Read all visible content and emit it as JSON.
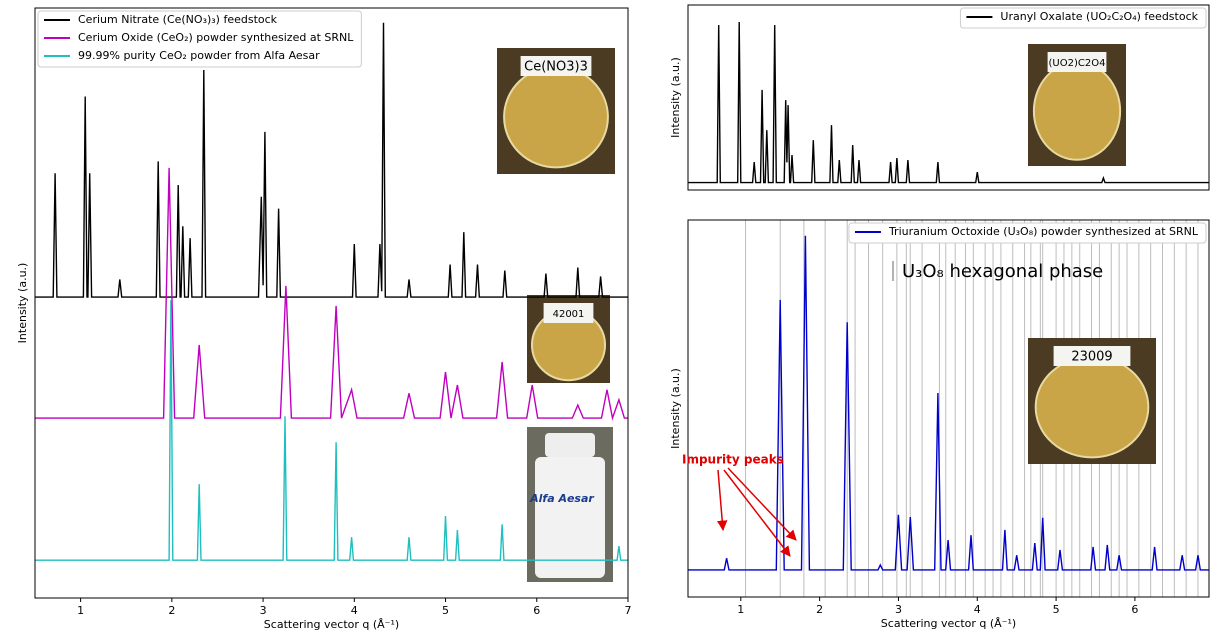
{
  "chart_data": [
    {
      "type": "line",
      "xlabel": "Scattering vector q (Å⁻¹)",
      "ylabel": "Intensity (a.u.)",
      "xlim": [
        0.5,
        7
      ],
      "xticks": [
        1,
        2,
        3,
        4,
        5,
        6,
        7
      ],
      "ylim": [
        0,
        10
      ],
      "legend": "upper left",
      "photo_labels": [
        "Ce(NO3)3",
        "42001",
        "Alfa Aesar"
      ],
      "series": [
        {
          "name": "Cerium Nitrate (Ce(NO₃)₃) feedstock",
          "color": "#000000",
          "x": [
            0.5,
            0.7,
            0.72,
            0.74,
            1.03,
            1.05,
            1.07,
            1.08,
            1.1,
            1.12,
            1.41,
            1.43,
            1.45,
            1.83,
            1.85,
            1.87,
            2.05,
            2.07,
            2.09,
            2.1,
            2.12,
            2.14,
            2.18,
            2.2,
            2.22,
            2.33,
            2.35,
            2.37,
            2.95,
            2.98,
            3.0,
            3.02,
            3.04,
            3.15,
            3.17,
            3.19,
            3.98,
            4.0,
            4.02,
            4.26,
            4.28,
            4.3,
            4.32,
            4.34,
            4.58,
            4.6,
            4.62,
            5.03,
            5.05,
            5.07,
            5.18,
            5.2,
            5.22,
            5.33,
            5.35,
            5.37,
            5.63,
            5.65,
            5.67,
            6.08,
            6.1,
            6.12,
            6.43,
            6.45,
            6.47,
            6.68,
            6.7,
            6.72,
            7.0
          ],
          "values": [
            5.1,
            5.1,
            7.2,
            5.1,
            5.1,
            8.5,
            5.1,
            5.1,
            7.2,
            5.1,
            5.1,
            5.4,
            5.1,
            5.1,
            7.4,
            5.1,
            5.1,
            7.0,
            5.1,
            5.1,
            6.3,
            5.1,
            5.1,
            6.1,
            5.1,
            5.1,
            8.95,
            5.1,
            5.1,
            6.8,
            5.3,
            7.9,
            5.1,
            5.1,
            6.6,
            5.1,
            5.1,
            6.0,
            5.1,
            5.1,
            6.0,
            5.2,
            9.75,
            5.1,
            5.1,
            5.4,
            5.1,
            5.1,
            5.65,
            5.1,
            5.1,
            6.2,
            5.1,
            5.1,
            5.65,
            5.1,
            5.1,
            5.55,
            5.1,
            5.1,
            5.5,
            5.1,
            5.1,
            5.6,
            5.1,
            5.1,
            5.45,
            5.1,
            5.1
          ]
        },
        {
          "name": "Cerium Oxide (CeO₂) powder synthesized at SRNL",
          "color": "#bf00bf",
          "x": [
            0.5,
            1.91,
            1.97,
            2.03,
            2.24,
            2.3,
            2.36,
            3.19,
            3.25,
            3.31,
            3.74,
            3.8,
            3.86,
            3.97,
            4.03,
            4.54,
            4.6,
            4.66,
            4.94,
            5.0,
            5.06,
            5.13,
            5.19,
            5.56,
            5.62,
            5.68,
            5.89,
            5.95,
            6.01,
            6.39,
            6.45,
            6.51,
            6.71,
            6.77,
            6.83,
            6.9,
            6.96,
            7.0
          ],
          "values": [
            3.05,
            3.05,
            7.29,
            3.05,
            3.05,
            4.29,
            3.05,
            3.05,
            5.29,
            3.05,
            3.05,
            4.95,
            3.05,
            3.53,
            3.05,
            3.05,
            3.47,
            3.05,
            3.05,
            3.83,
            3.05,
            3.61,
            3.05,
            3.05,
            4.0,
            3.05,
            3.05,
            3.61,
            3.05,
            3.05,
            3.27,
            3.05,
            3.05,
            3.53,
            3.05,
            3.36,
            3.05,
            3.05
          ]
        },
        {
          "name": "99.99% purity CeO₂ powder from Alfa Aesar",
          "color": "#1fbfbf",
          "x": [
            0.5,
            1.97,
            1.99,
            2.01,
            2.28,
            2.3,
            2.32,
            3.22,
            3.24,
            3.26,
            3.78,
            3.8,
            3.82,
            3.95,
            3.97,
            3.99,
            4.58,
            4.6,
            4.62,
            4.98,
            5.0,
            5.02,
            5.11,
            5.13,
            5.15,
            5.6,
            5.62,
            5.64,
            6.88,
            6.9,
            6.92,
            7.0
          ],
          "values": [
            0.64,
            0.64,
            5.05,
            0.64,
            0.64,
            1.93,
            0.64,
            0.64,
            3.08,
            0.64,
            0.64,
            2.64,
            0.64,
            0.64,
            1.03,
            0.64,
            0.64,
            1.03,
            0.64,
            0.64,
            1.39,
            0.64,
            0.64,
            1.15,
            0.64,
            0.64,
            1.25,
            0.64,
            0.64,
            0.88,
            0.64,
            0.64
          ]
        }
      ]
    },
    {
      "type": "line",
      "ylabel": "Intensity (a.u.)",
      "xlim": [
        0.33,
        6.94
      ],
      "ylim": [
        0,
        10
      ],
      "legend": "upper right",
      "photo_labels": [
        "(UO2)C2O4"
      ],
      "series": [
        {
          "name": "Uranyl Oxalate (UO₂C₂O₄) feedstock",
          "color": "#000000",
          "x": [
            0.33,
            0.7,
            0.72,
            0.74,
            0.96,
            0.98,
            1.0,
            1.15,
            1.17,
            1.19,
            1.25,
            1.27,
            1.29,
            1.31,
            1.33,
            1.35,
            1.41,
            1.43,
            1.45,
            1.55,
            1.57,
            1.585,
            1.6,
            1.62,
            1.63,
            1.65,
            1.67,
            1.9,
            1.92,
            1.94,
            2.13,
            2.15,
            2.17,
            2.23,
            2.25,
            2.27,
            2.4,
            2.42,
            2.44,
            2.48,
            2.5,
            2.52,
            2.88,
            2.9,
            2.92,
            2.96,
            2.98,
            3.0,
            3.1,
            3.12,
            3.14,
            3.48,
            3.5,
            3.52,
            3.98,
            4.0,
            4.02,
            5.58,
            5.6,
            5.62,
            6.94
          ],
          "values": [
            0.4,
            0.4,
            8.92,
            0.4,
            0.4,
            9.08,
            0.4,
            0.4,
            1.51,
            0.4,
            0.4,
            5.41,
            0.4,
            0.4,
            3.24,
            0.4,
            0.4,
            8.92,
            0.4,
            0.4,
            4.86,
            1.5,
            4.59,
            0.4,
            0.4,
            1.89,
            0.4,
            0.4,
            2.7,
            0.4,
            0.4,
            3.51,
            0.4,
            0.4,
            1.62,
            0.4,
            0.4,
            2.43,
            0.4,
            0.4,
            1.62,
            0.4,
            0.4,
            1.51,
            0.4,
            0.4,
            1.73,
            0.4,
            0.4,
            1.62,
            0.4,
            0.4,
            1.51,
            0.4,
            0.4,
            0.97,
            0.4,
            0.4,
            0.65,
            0.4,
            0.4
          ]
        }
      ]
    },
    {
      "type": "line",
      "xlabel": "Scattering vector q (Å⁻¹)",
      "ylabel": "Intensity (a.u.)",
      "xlim": [
        0.33,
        6.94
      ],
      "xticks": [
        1,
        2,
        3,
        4,
        5,
        6
      ],
      "ylim": [
        0,
        10
      ],
      "legend": "upper right",
      "photo_labels": [
        "23009"
      ],
      "annotations": [
        "U₃O₈ hexagonal phase",
        "Impurity peaks"
      ],
      "reference_lines": [
        1.06,
        1.5,
        1.8,
        2.07,
        2.35,
        2.45,
        2.62,
        2.8,
        2.98,
        3.1,
        3.15,
        3.3,
        3.52,
        3.6,
        3.72,
        3.85,
        3.95,
        4.1,
        4.2,
        4.3,
        4.45,
        4.6,
        4.68,
        4.8,
        4.83,
        5.0,
        5.1,
        5.2,
        5.3,
        5.45,
        5.55,
        5.7,
        5.8,
        5.9,
        6.05,
        6.2,
        6.35,
        6.5,
        6.65,
        6.8
      ],
      "series": [
        {
          "name": "Triuranium Octoxide (U₃O₈) powder synthesized at SRNL",
          "color": "#0000cc",
          "x": [
            0.33,
            0.79,
            0.82,
            0.85,
            1.45,
            1.5,
            1.55,
            1.77,
            1.82,
            1.87,
            2.3,
            2.35,
            2.4,
            2.74,
            2.77,
            2.8,
            2.96,
            3.0,
            3.04,
            3.11,
            3.15,
            3.19,
            3.46,
            3.5,
            3.54,
            3.6,
            3.63,
            3.66,
            3.89,
            3.92,
            3.95,
            4.32,
            4.35,
            4.38,
            4.47,
            4.5,
            4.53,
            4.7,
            4.73,
            4.76,
            4.8,
            4.83,
            4.86,
            5.02,
            5.05,
            5.08,
            5.44,
            5.47,
            5.5,
            5.62,
            5.65,
            5.68,
            5.77,
            5.8,
            5.83,
            6.22,
            6.25,
            6.28,
            6.57,
            6.6,
            6.63,
            6.77,
            6.8,
            6.83,
            6.94
          ],
          "values": [
            0.72,
            0.72,
            1.03,
            0.72,
            0.72,
            7.88,
            0.72,
            0.72,
            9.58,
            0.72,
            0.72,
            7.29,
            0.72,
            0.72,
            0.85,
            0.72,
            0.72,
            2.18,
            0.72,
            0.72,
            2.12,
            0.72,
            0.72,
            5.41,
            0.72,
            0.72,
            1.51,
            0.72,
            0.72,
            1.64,
            0.72,
            0.72,
            1.78,
            0.72,
            0.72,
            1.11,
            0.72,
            0.72,
            1.43,
            0.72,
            0.72,
            2.1,
            0.72,
            0.72,
            1.25,
            0.72,
            0.72,
            1.33,
            0.72,
            0.72,
            1.38,
            0.72,
            0.72,
            1.11,
            0.72,
            0.72,
            1.33,
            0.72,
            0.72,
            1.11,
            0.72,
            0.72,
            1.11,
            0.72,
            0.72
          ]
        }
      ]
    }
  ]
}
